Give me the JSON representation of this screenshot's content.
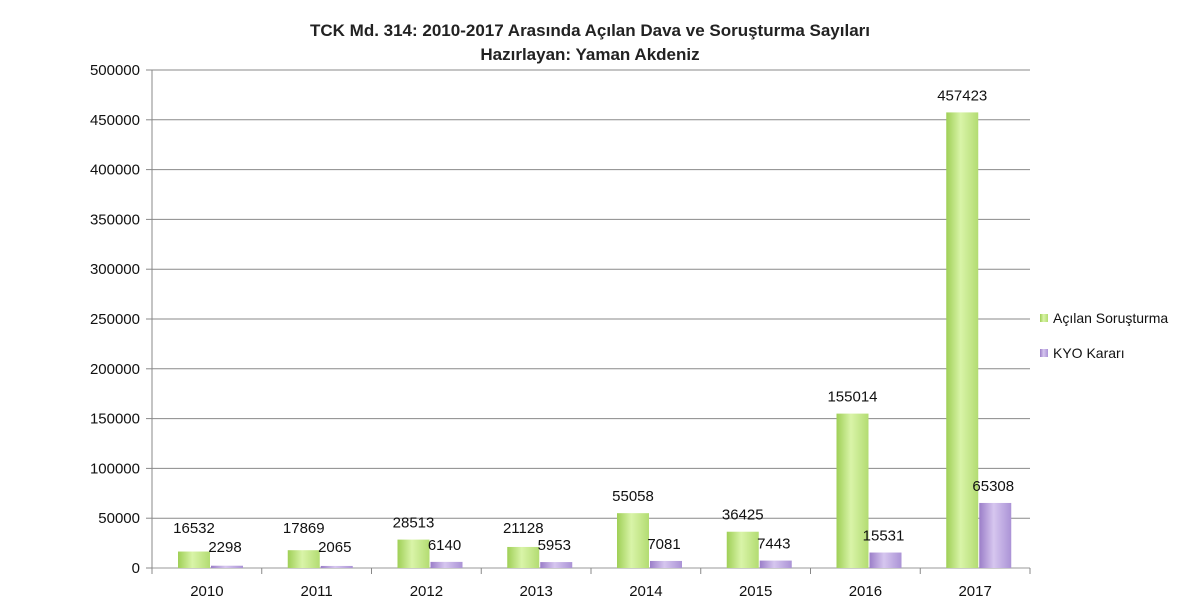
{
  "chart_data": {
    "type": "bar",
    "title": "TCK Md. 314: 2010-2017 Arasında Açılan Dava ve Soruşturma Sayıları",
    "subtitle": "Hazırlayan: Yaman Akdeniz",
    "xlabel": "",
    "ylabel": "",
    "categories": [
      "2010",
      "2011",
      "2012",
      "2013",
      "2014",
      "2015",
      "2016",
      "2017"
    ],
    "series": [
      {
        "name": "Açılan Soruşturma",
        "values": [
          16532,
          17869,
          28513,
          21128,
          55058,
          36425,
          155014,
          457423
        ],
        "color": "#b6de6e"
      },
      {
        "name": "KYO Kararı",
        "values": [
          2298,
          2065,
          6140,
          5953,
          7081,
          7443,
          15531,
          65308
        ],
        "color": "#a78bd0"
      }
    ],
    "ylim": [
      0,
      500000
    ],
    "yticks": [
      "0",
      "50000",
      "100000",
      "150000",
      "200000",
      "250000",
      "300000",
      "350000",
      "400000",
      "450000",
      "500000"
    ],
    "grid": true,
    "legend": "right"
  }
}
